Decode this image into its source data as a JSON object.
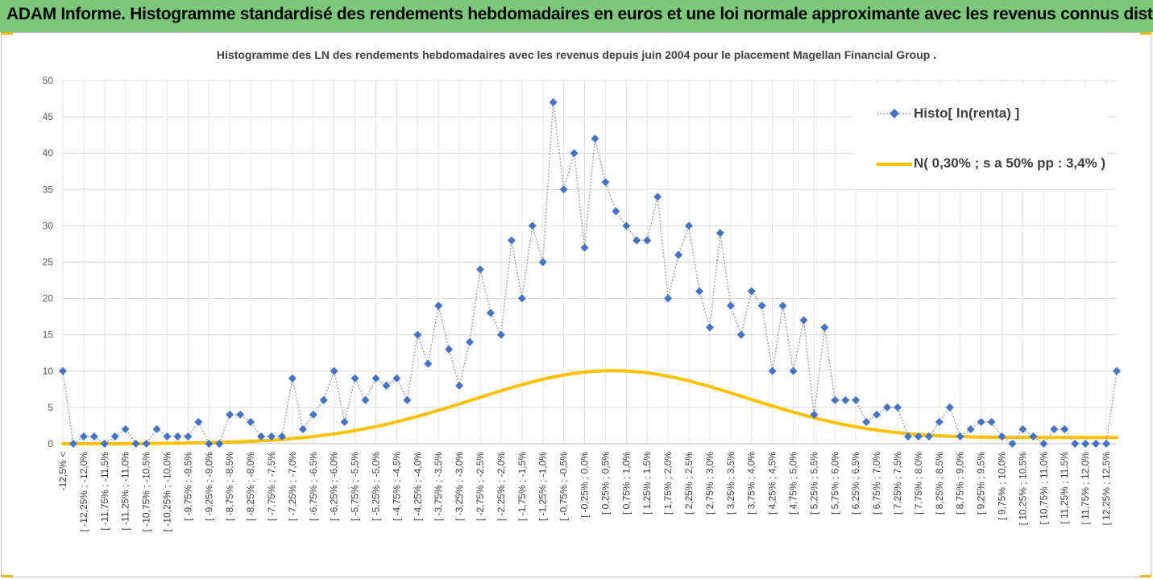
{
  "banner": {
    "title": "ADAM Informe. Histogramme standardisé des rendements hebdomadaires en euros et une loi normale approximante avec les revenus connus distribués"
  },
  "colors": {
    "banner_bg": "#7dc97c",
    "histo": "#4472c4",
    "normal": "#ffc000",
    "grid": "#d9d9d9",
    "accent": "#f5b800"
  },
  "chart_data": {
    "type": "line",
    "title": "Histogramme des LN des rendements hebdomadaires avec les revenus depuis juin 2004 pour le placement Magellan Financial Group .",
    "ylim": [
      0,
      50
    ],
    "yticks": [
      "0",
      "5",
      "10",
      "15",
      "20",
      "25",
      "30",
      "35",
      "40",
      "45",
      "50"
    ],
    "grid": true,
    "legend_position": "top-right",
    "categories": [
      "-12,5% <",
      "[ -12,5% ; -12,25%",
      "[ -12,25% ; -12,0%",
      "[ -12,0% ; -11,75%",
      "[ -11,75% ; -11,5%",
      "[ -11,5% ; -11,25%",
      "[ -11,25% ; -11,0%",
      "[ -11,0% ; -10,75%",
      "[ -10,75% ; -10,5%",
      "[ -10,5% ; -10,25%",
      "[ -10,25% ; -10,0%",
      "[ -10,0% ; -9,75%",
      "[ -9,75% ; -9,5%",
      "[ -9,5% ; -9,25%",
      "[ -9,25% ; -9,0%",
      "[ -9,0% ; -8,75%",
      "[ -8,75% ; -8,5%",
      "[ -8,5% ; -8,25%",
      "[ -8,25% ; -8,0%",
      "[ -8,0% ; -7,75%",
      "[ -7,75% ; -7,5%",
      "[ -7,5% ; -7,25%",
      "[ -7,25% ; -7,0%",
      "[ -7,0% ; -6,75%",
      "[ -6,75% ; -6,5%",
      "[ -6,5% ; -6,25%",
      "[ -6,25% ; -6,0%",
      "[ -6,0% ; -5,75%",
      "[ -5,75% ; -5,5%",
      "[ -5,5% ; -5,25%",
      "[ -5,25% ; -5,0%",
      "[ -5,0% ; -4,75%",
      "[ -4,75% ; -4,5%",
      "[ -4,5% ; -4,25%",
      "[ -4,25% ; -4,0%",
      "[ -4,0% ; -3,75%",
      "[ -3,75% ; -3,5%",
      "[ -3,5% ; -3,25%",
      "[ -3,25% ; -3,0%",
      "[ -3,0% ; -2,75%",
      "[ -2,75% ; -2,5%",
      "[ -2,5% ; -2,25%",
      "[ -2,25% ; -2,0%",
      "[ -2,0% ; -1,75%",
      "[ -1,75% ; -1,5%",
      "[ -1,5% ; -1,25%",
      "[ -1,25% ; -1,0%",
      "[ -1,0% ; -0,75%",
      "[ -0,75% ; -0,5%",
      "[ -0,5% ; -0,25%",
      "[ -0,25% ; 0,0%",
      "[ 0,0% ; 0,25%",
      "[ 0,25% ; 0,5%",
      "[ 0,5% ; 0,75%",
      "[ 0,75% ; 1,0%",
      "[ 1,0% ; 1,25%",
      "[ 1,25% ; 1,5%",
      "[ 1,5% ; 1,75%",
      "[ 1,75% ; 2,0%",
      "[ 2,0% ; 2,25%",
      "[ 2,25% ; 2,5%",
      "[ 2,5% ; 2,75%",
      "[ 2,75% ; 3,0%",
      "[ 3,0% ; 3,25%",
      "[ 3,25% ; 3,5%",
      "[ 3,5% ; 3,75%",
      "[ 3,75% ; 4,0%",
      "[ 4,0% ; 4,25%",
      "[ 4,25% ; 4,5%",
      "[ 4,5% ; 4,75%",
      "[ 4,75% ; 5,0%",
      "[ 5,0% ; 5,25%",
      "[ 5,25% ; 5,5%",
      "[ 5,5% ; 5,75%",
      "[ 5,75% ; 6,0%",
      "[ 6,0% ; 6,25%",
      "[ 6,25% ; 6,5%",
      "[ 6,5% ; 6,75%",
      "[ 6,75% ; 7,0%",
      "[ 7,0% ; 7,25%",
      "[ 7,25% ; 7,5%",
      "[ 7,5% ; 7,75%",
      "[ 7,75% ; 8,0%",
      "[ 8,0% ; 8,25%",
      "[ 8,25% ; 8,5%",
      "[ 8,5% ; 8,75%",
      "[ 8,75% ; 9,0%",
      "[ 9,0% ; 9,25%",
      "[ 9,25% ; 9,5%",
      "[ 9,5% ; 9,75%",
      "[ 9,75% ; 10,0%",
      "[ 10,0% ; 10,25%",
      "[ 10,25% ; 10,5%",
      "[ 10,5% ; 10,75%",
      "[ 10,75% ; 11,0%",
      "[ 11,0% ; 11,25%",
      "[ 11,25% ; 11,5%",
      "[ 11,5% ; 11,75%",
      "[ 11,75% ; 12,0%",
      "[ 12,0% ; 12,25%",
      "[ 12,25% ; 12,5%",
      "12,5% <"
    ],
    "series": [
      {
        "name": "Histo[ ln(renta) ]",
        "style": "dotted line with diamond markers",
        "values": [
          10,
          0,
          1,
          1,
          0,
          1,
          2,
          0,
          0,
          2,
          1,
          1,
          1,
          3,
          0,
          0,
          4,
          4,
          3,
          1,
          1,
          1,
          9,
          2,
          4,
          6,
          10,
          3,
          9,
          6,
          9,
          8,
          9,
          6,
          15,
          11,
          19,
          13,
          8,
          14,
          24,
          18,
          15,
          28,
          20,
          30,
          25,
          47,
          35,
          40,
          27,
          42,
          36,
          32,
          30,
          28,
          28,
          34,
          20,
          26,
          30,
          21,
          16,
          29,
          19,
          15,
          21,
          19,
          10,
          19,
          10,
          17,
          4,
          16,
          6,
          6,
          6,
          3,
          4,
          5,
          5,
          1,
          1,
          1,
          3,
          5,
          1,
          2,
          3,
          3,
          1,
          0,
          2,
          1,
          0,
          2,
          2,
          0,
          0,
          0,
          0,
          10
        ]
      },
      {
        "name": "N( 0,30% ; s a 50% pp : 3,4% )",
        "style": "smooth solid line",
        "values": [
          0.004,
          0.005,
          0.007,
          0.009,
          0.012,
          0.015,
          0.02,
          0.026,
          0.034,
          0.044,
          0.056,
          0.071,
          0.09,
          0.114,
          0.143,
          0.178,
          0.221,
          0.272,
          0.333,
          0.406,
          0.491,
          0.59,
          0.705,
          0.837,
          0.988,
          1.16,
          1.353,
          1.57,
          1.81,
          2.075,
          2.365,
          2.68,
          3.019,
          3.382,
          3.766,
          4.171,
          4.593,
          5.029,
          5.477,
          5.932,
          6.389,
          6.843,
          7.289,
          7.72,
          8.131,
          8.516,
          8.869,
          9.185,
          9.458,
          9.684,
          9.86,
          9.983,
          10.05,
          10.06,
          10.015,
          9.913,
          9.758,
          9.55,
          9.293,
          8.991,
          8.649,
          8.272,
          7.867,
          7.44,
          6.997,
          6.545,
          6.089,
          5.636,
          5.19,
          4.756,
          4.339,
          3.942,
          3.567,
          3.217,
          2.893,
          2.596,
          2.327,
          2.085,
          1.871,
          1.683,
          1.52,
          1.381,
          1.264,
          1.168,
          1.09,
          1.028,
          0.98,
          0.944,
          0.918,
          0.899,
          0.886,
          0.877,
          0.872,
          0.868,
          0.866,
          0.865,
          0.864,
          0.864,
          0.864,
          0.864,
          0.864,
          0.864
        ]
      }
    ]
  }
}
